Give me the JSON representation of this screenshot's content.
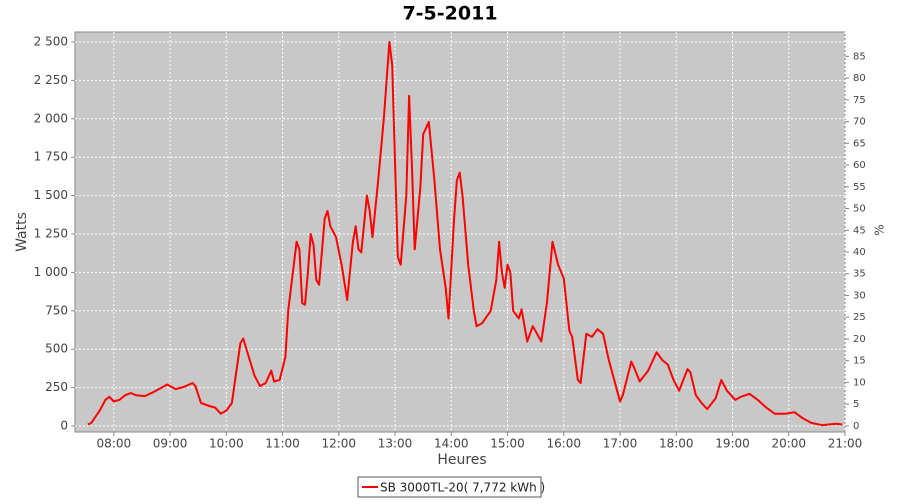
{
  "chart_data": {
    "type": "line",
    "title": "7-5-2011",
    "x_label": "Heures",
    "y_label": "Watts",
    "y2_label": "%",
    "x": [
      7.54,
      7.6,
      7.75,
      7.85,
      7.92,
      8.0,
      8.1,
      8.2,
      8.3,
      8.4,
      8.55,
      8.7,
      8.85,
      8.95,
      9.1,
      9.25,
      9.4,
      9.45,
      9.55,
      9.7,
      9.8,
      9.9,
      10.0,
      10.1,
      10.15,
      10.25,
      10.3,
      10.4,
      10.5,
      10.6,
      10.7,
      10.8,
      10.85,
      10.95,
      11.05,
      11.1,
      11.2,
      11.25,
      11.3,
      11.35,
      11.4,
      11.45,
      11.5,
      11.55,
      11.6,
      11.65,
      11.75,
      11.8,
      11.85,
      11.95,
      12.05,
      12.15,
      12.25,
      12.3,
      12.35,
      12.4,
      12.5,
      12.55,
      12.6,
      12.7,
      12.8,
      12.9,
      12.95,
      13.05,
      13.1,
      13.2,
      13.25,
      13.3,
      13.35,
      13.45,
      13.5,
      13.6,
      13.7,
      13.8,
      13.9,
      13.95,
      14.05,
      14.1,
      14.15,
      14.2,
      14.3,
      14.4,
      14.45,
      14.55,
      14.7,
      14.8,
      14.85,
      14.9,
      14.95,
      15.0,
      15.05,
      15.1,
      15.2,
      15.25,
      15.35,
      15.45,
      15.6,
      15.7,
      15.8,
      15.9,
      16.0,
      16.1,
      16.15,
      16.25,
      16.3,
      16.4,
      16.5,
      16.6,
      16.7,
      16.8,
      17.0,
      17.05,
      17.2,
      17.25,
      17.35,
      17.5,
      17.65,
      17.75,
      17.85,
      17.95,
      18.05,
      18.2,
      18.25,
      18.35,
      18.45,
      18.55,
      18.7,
      18.8,
      18.9,
      19.05,
      19.15,
      19.3,
      19.45,
      19.6,
      19.75,
      19.95,
      20.1,
      20.25,
      20.4,
      20.6,
      20.7,
      20.85,
      20.95
    ],
    "series": [
      {
        "name": "SB 3000TL-20( 7,772 kWh )",
        "color": "#ff0000",
        "values": [
          10,
          20,
          100,
          170,
          190,
          160,
          170,
          200,
          215,
          200,
          195,
          220,
          250,
          270,
          240,
          255,
          280,
          260,
          150,
          130,
          120,
          80,
          100,
          150,
          280,
          540,
          570,
          450,
          330,
          260,
          280,
          360,
          290,
          300,
          450,
          750,
          1050,
          1200,
          1150,
          800,
          790,
          1000,
          1250,
          1180,
          950,
          920,
          1350,
          1400,
          1300,
          1230,
          1050,
          820,
          1200,
          1300,
          1150,
          1130,
          1500,
          1400,
          1230,
          1600,
          2000,
          2500,
          2350,
          1100,
          1050,
          1500,
          2150,
          1700,
          1150,
          1550,
          1900,
          1980,
          1600,
          1150,
          900,
          700,
          1350,
          1600,
          1650,
          1500,
          1050,
          750,
          650,
          670,
          750,
          950,
          1200,
          1000,
          900,
          1050,
          1000,
          750,
          700,
          760,
          550,
          650,
          550,
          800,
          1200,
          1050,
          960,
          620,
          580,
          300,
          280,
          600,
          580,
          630,
          600,
          430,
          160,
          200,
          420,
          380,
          290,
          360,
          480,
          430,
          400,
          300,
          230,
          370,
          350,
          200,
          150,
          110,
          180,
          300,
          230,
          170,
          190,
          210,
          170,
          120,
          80,
          80,
          90,
          50,
          20,
          5,
          10,
          15,
          10
        ]
      }
    ],
    "xlim": [
      7.31,
      21
    ],
    "xticks": [
      {
        "value": 8,
        "label": "08:00"
      },
      {
        "value": 9,
        "label": "09:00"
      },
      {
        "value": 10,
        "label": "10:00"
      },
      {
        "value": 11,
        "label": "11:00"
      },
      {
        "value": 12,
        "label": "12:00"
      },
      {
        "value": 13,
        "label": "13:00"
      },
      {
        "value": 14,
        "label": "14:00"
      },
      {
        "value": 15,
        "label": "15:00"
      },
      {
        "value": 16,
        "label": "16:00"
      },
      {
        "value": 17,
        "label": "17:00"
      },
      {
        "value": 18,
        "label": "18:00"
      },
      {
        "value": 19,
        "label": "19:00"
      },
      {
        "value": 20,
        "label": "20:00"
      },
      {
        "value": 21,
        "label": "21:00"
      }
    ],
    "ylim": [
      -39,
      2565
    ],
    "yticks": [
      0,
      250,
      500,
      750,
      {
        "value": 1000,
        "label": "1 000"
      },
      {
        "value": 1250,
        "label": "1 250"
      },
      {
        "value": 1500,
        "label": "1 500"
      },
      {
        "value": 1750,
        "label": "1 750"
      },
      {
        "value": 2000,
        "label": "2 000"
      },
      {
        "value": 2250,
        "label": "2 250"
      },
      {
        "value": 2500,
        "label": "2 500"
      }
    ],
    "y2lim": [
      -1.4,
      90.6
    ],
    "y2ticks": [
      0,
      5,
      10,
      15,
      20,
      25,
      30,
      35,
      40,
      45,
      50,
      55,
      60,
      65,
      70,
      75,
      80,
      85
    ],
    "grid": true
  }
}
